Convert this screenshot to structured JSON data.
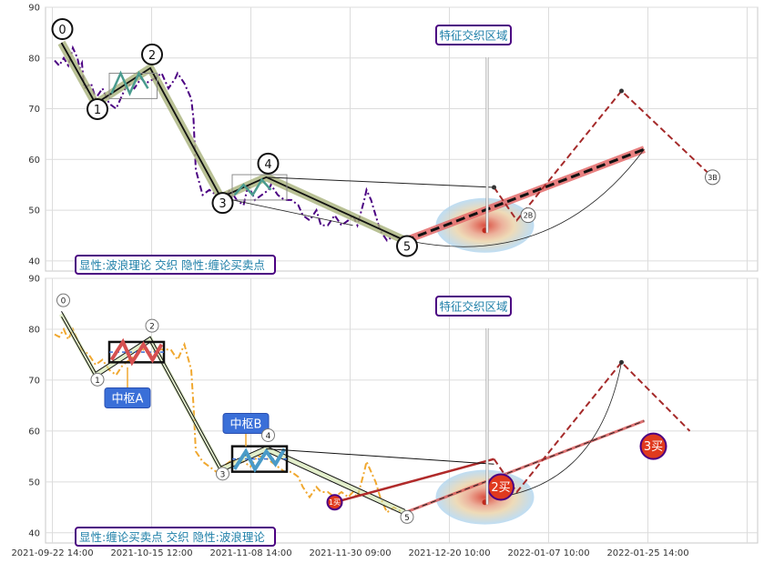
{
  "chart_data": [
    {
      "type": "line",
      "panel": "top",
      "ylim": [
        38,
        90
      ],
      "yticks": [
        "40",
        "50",
        "60",
        "70",
        "80",
        "90"
      ],
      "grid": true,
      "legend_text": "显性:波浪理论 交织 隐性:缠论买卖点",
      "annotation": "特征交织区域",
      "price_series": [
        [
          0.5,
          79.5
        ],
        [
          1.5,
          78.5
        ],
        [
          2.5,
          80
        ],
        [
          3.5,
          78.5
        ],
        [
          4.5,
          82
        ],
        [
          5.5,
          80
        ],
        [
          6,
          78
        ],
        [
          6.5,
          79
        ],
        [
          7,
          74
        ],
        [
          8.5,
          75
        ],
        [
          9.5,
          72
        ],
        [
          11,
          74
        ],
        [
          12.5,
          71
        ],
        [
          14,
          70
        ],
        [
          15,
          72
        ],
        [
          16.5,
          75
        ],
        [
          18,
          74
        ],
        [
          19.5,
          76
        ],
        [
          20.5,
          75
        ],
        [
          22.5,
          76
        ],
        [
          24,
          77
        ],
        [
          25.5,
          74
        ],
        [
          27,
          76
        ],
        [
          27.5,
          77
        ],
        [
          29,
          75
        ],
        [
          30.5,
          72
        ],
        [
          31,
          68
        ],
        [
          31.5,
          58
        ],
        [
          33,
          53
        ],
        [
          34.5,
          54
        ],
        [
          36,
          53
        ],
        [
          37.5,
          52
        ],
        [
          39,
          54
        ],
        [
          40.5,
          52
        ],
        [
          42,
          51
        ],
        [
          43,
          55
        ],
        [
          44.5,
          52
        ],
        [
          46,
          53
        ],
        [
          47.5,
          54
        ],
        [
          48,
          55
        ],
        [
          49.5,
          53
        ],
        [
          51,
          52
        ],
        [
          52.5,
          52
        ],
        [
          54,
          51
        ],
        [
          55,
          49
        ],
        [
          56.5,
          48
        ],
        [
          58,
          50
        ],
        [
          59,
          47
        ],
        [
          60.5,
          47
        ],
        [
          62,
          49
        ],
        [
          63.5,
          47
        ],
        [
          65,
          48
        ],
        [
          66,
          49
        ],
        [
          67,
          47
        ],
        [
          68.5,
          52
        ],
        [
          69,
          54
        ],
        [
          70,
          52
        ],
        [
          71,
          49
        ],
        [
          72,
          46
        ],
        [
          73.5,
          44
        ],
        [
          75,
          45
        ],
        [
          77,
          44
        ]
      ],
      "wave_points": [
        {
          "label": "0",
          "x": 2,
          "y": 83
        },
        {
          "label": "1",
          "x": 9.5,
          "y": 71
        },
        {
          "label": "2",
          "x": 21.5,
          "y": 78
        },
        {
          "label": "3",
          "x": 37,
          "y": 52.5
        },
        {
          "label": "4",
          "x": 47,
          "y": 56.5
        },
        {
          "label": "5",
          "x": 77.5,
          "y": 44
        }
      ],
      "forecast_labels": [
        "2B",
        "3B"
      ]
    },
    {
      "type": "line",
      "panel": "bottom",
      "ylim": [
        38,
        90
      ],
      "yticks": [
        "40",
        "50",
        "60",
        "70",
        "80",
        "90"
      ],
      "grid": true,
      "legend_text": "显性:缠论买卖点 交织 隐性:波浪理论",
      "annotation": "特征交织区域",
      "zones": [
        "中枢A",
        "中枢B"
      ],
      "price_series": [
        [
          0.5,
          79
        ],
        [
          1.5,
          78.5
        ],
        [
          2.5,
          80
        ],
        [
          3.5,
          78
        ],
        [
          4.5,
          80
        ],
        [
          5.5,
          78
        ],
        [
          6.5,
          76
        ],
        [
          8,
          75
        ],
        [
          9.5,
          73
        ],
        [
          11,
          74
        ],
        [
          12.5,
          72
        ],
        [
          14,
          71
        ],
        [
          15.5,
          73
        ],
        [
          17,
          74
        ],
        [
          18.5,
          75
        ],
        [
          20,
          76
        ],
        [
          21.5,
          75
        ],
        [
          23,
          76
        ],
        [
          24.5,
          76
        ],
        [
          26,
          76
        ],
        [
          27.5,
          74
        ],
        [
          29,
          77
        ],
        [
          30.5,
          72
        ],
        [
          31,
          65
        ],
        [
          31.5,
          56
        ],
        [
          33,
          54
        ],
        [
          34.5,
          53
        ],
        [
          36,
          52
        ],
        [
          37.5,
          53
        ],
        [
          39,
          54
        ],
        [
          40.5,
          54
        ],
        [
          42,
          54
        ],
        [
          43.5,
          53
        ],
        [
          45,
          55
        ],
        [
          46.5,
          55
        ],
        [
          48,
          54
        ],
        [
          49.5,
          53
        ],
        [
          51,
          52
        ],
        [
          52.5,
          52
        ],
        [
          54,
          51
        ],
        [
          55,
          49
        ],
        [
          56.5,
          47
        ],
        [
          58,
          49
        ],
        [
          59,
          48
        ],
        [
          60.5,
          48
        ],
        [
          62,
          47
        ],
        [
          63.5,
          48
        ],
        [
          65,
          47
        ],
        [
          66,
          48
        ],
        [
          67,
          47
        ],
        [
          68.5,
          52
        ],
        [
          69,
          54
        ],
        [
          70,
          52
        ],
        [
          71,
          50
        ],
        [
          72,
          47
        ],
        [
          73.5,
          44
        ],
        [
          75,
          45
        ],
        [
          77,
          44
        ]
      ],
      "wave_points": [
        {
          "label": "0",
          "x": 2,
          "y": 83
        },
        {
          "label": "1",
          "x": 9.5,
          "y": 71
        },
        {
          "label": "2",
          "x": 21.5,
          "y": 78
        },
        {
          "label": "3",
          "x": 37,
          "y": 52.5
        },
        {
          "label": "4",
          "x": 47,
          "y": 56.5
        },
        {
          "label": "5",
          "x": 77.5,
          "y": 44
        }
      ],
      "signals": [
        {
          "label": "1买",
          "x": 62,
          "y": 46
        },
        {
          "label": "2买",
          "x": 98.5,
          "y": 49
        },
        {
          "label": "3买",
          "x": 132,
          "y": 57
        }
      ]
    }
  ],
  "x_axis_labels": [
    "2021-09-22 14:00",
    "2021-10-15 12:00",
    "2021-11-08 14:00",
    "2021-11-30 09:00",
    "2021-12-20 10:00",
    "2022-01-07 10:00",
    "2022-01-25 14:00"
  ],
  "colors": {
    "wave_line": "#111111",
    "wave_band": "#a8b27a",
    "price_top": "#4b0082",
    "price_bottom": "#f0a830",
    "forecast": "#a52a2a",
    "trend": "#e46a6a",
    "legend_border": "#4b0082",
    "legend_text": "#1e7fa8",
    "zone_label_bg": "#3a6fd8",
    "signal_fill": "#e03a1e"
  }
}
